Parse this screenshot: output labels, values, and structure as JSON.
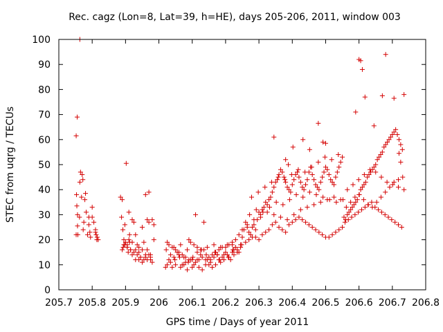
{
  "chart_data": {
    "type": "scatter",
    "title": "Rec. cagz (Lon=8, Lat=39, h=HE), days 205-206, 2011, window 003",
    "xlabel": "GPS time / Days of year 2011",
    "ylabel": "STEC from uqrg / TECUs",
    "xlim": [
      205.7,
      206.8
    ],
    "ylim": [
      0,
      100
    ],
    "xticks": [
      205.7,
      205.8,
      205.9,
      206,
      206.1,
      206.2,
      206.3,
      206.4,
      206.5,
      206.6,
      206.7,
      206.8
    ],
    "xtick_labels": [
      "205.7",
      "205.8",
      "205.9",
      "206",
      "206.1",
      "206.2",
      "206.3",
      "206.4",
      "206.5",
      "206.6",
      "206.7",
      "206.8"
    ],
    "yticks": [
      0,
      10,
      20,
      30,
      40,
      50,
      60,
      70,
      80,
      90,
      100
    ],
    "ytick_labels": [
      "0",
      "10",
      "20",
      "30",
      "40",
      "50",
      "60",
      "70",
      "80",
      "90",
      "100"
    ],
    "marker": "+",
    "color": "#d40000",
    "series": [
      {
        "name": "STEC",
        "x": [
          205.755,
          205.752,
          205.753,
          205.754,
          205.756,
          205.757,
          205.765,
          205.763,
          205.77,
          205.772,
          205.775,
          205.778,
          205.78,
          205.782,
          205.79,
          205.793,
          205.795,
          205.8,
          205.805,
          205.81,
          205.812,
          205.815,
          205.818,
          205.752,
          205.756,
          205.762,
          205.768,
          205.773,
          205.786,
          205.79,
          205.8,
          205.81,
          205.814,
          205.885,
          205.888,
          205.89,
          205.892,
          205.895,
          205.898,
          205.902,
          205.905,
          205.908,
          205.91,
          205.912,
          205.915,
          205.92,
          205.925,
          205.93,
          205.935,
          205.94,
          205.945,
          205.95,
          205.955,
          205.96,
          205.965,
          205.97,
          205.975,
          205.98,
          205.985,
          205.893,
          205.9,
          205.91,
          205.92,
          205.93,
          205.94,
          205.95,
          205.96,
          205.97,
          205.975,
          205.895,
          205.905,
          205.915,
          205.925,
          205.935,
          205.945,
          205.955,
          205.965,
          205.975,
          205.98,
          205.89,
          205.898,
          205.905,
          205.912,
          205.92,
          205.93,
          205.94,
          205.95,
          205.96,
          205.965,
          205.97,
          205.985,
          206.02,
          206.025,
          206.03,
          206.035,
          206.04,
          206.045,
          206.05,
          206.055,
          206.06,
          206.065,
          206.07,
          206.075,
          206.08,
          206.085,
          206.09,
          206.095,
          206.1,
          206.105,
          206.11,
          206.115,
          206.12,
          206.125,
          206.13,
          206.135,
          206.14,
          206.145,
          206.15,
          206.155,
          206.16,
          206.165,
          206.17,
          206.175,
          206.18,
          206.185,
          206.19,
          206.195,
          206.2,
          206.205,
          206.21,
          206.215,
          206.22,
          206.225,
          206.23,
          206.235,
          206.24,
          206.245,
          206.03,
          206.04,
          206.05,
          206.06,
          206.07,
          206.08,
          206.09,
          206.1,
          206.11,
          206.12,
          206.13,
          206.14,
          206.15,
          206.16,
          206.17,
          206.18,
          206.19,
          206.2,
          206.21,
          206.22,
          206.23,
          206.24,
          206.25,
          206.022,
          206.035,
          206.048,
          206.062,
          206.075,
          206.088,
          206.102,
          206.115,
          206.128,
          206.142,
          206.155,
          206.168,
          206.182,
          206.195,
          206.208,
          206.222,
          206.235,
          206.248,
          206.025,
          206.045,
          206.065,
          206.085,
          206.105,
          206.125,
          206.145,
          206.165,
          206.185,
          206.205,
          206.225,
          206.245,
          206.095,
          206.115,
          206.135,
          206.175,
          206.22,
          206.25,
          206.255,
          206.26,
          206.265,
          206.27,
          206.275,
          206.28,
          206.285,
          206.29,
          206.295,
          206.3,
          206.305,
          206.31,
          206.315,
          206.32,
          206.325,
          206.33,
          206.335,
          206.34,
          206.345,
          206.35,
          206.355,
          206.36,
          206.365,
          206.37,
          206.375,
          206.38,
          206.385,
          206.39,
          206.395,
          206.4,
          206.405,
          206.41,
          206.415,
          206.42,
          206.425,
          206.43,
          206.435,
          206.44,
          206.445,
          206.45,
          206.455,
          206.46,
          206.465,
          206.47,
          206.475,
          206.48,
          206.485,
          206.49,
          206.495,
          206.5,
          206.505,
          206.51,
          206.515,
          206.52,
          206.525,
          206.53,
          206.535,
          206.54,
          206.545,
          206.55,
          206.26,
          206.27,
          206.28,
          206.29,
          206.3,
          206.31,
          206.32,
          206.33,
          206.34,
          206.35,
          206.36,
          206.37,
          206.38,
          206.39,
          206.4,
          206.41,
          206.42,
          206.43,
          206.44,
          206.45,
          206.46,
          206.47,
          206.48,
          206.49,
          206.5,
          206.51,
          206.52,
          206.53,
          206.54,
          206.55,
          206.265,
          206.285,
          206.305,
          206.325,
          206.345,
          206.365,
          206.385,
          206.405,
          206.425,
          206.445,
          206.465,
          206.485,
          206.505,
          206.525,
          206.545,
          206.272,
          206.292,
          206.312,
          206.332,
          206.352,
          206.372,
          206.392,
          206.412,
          206.432,
          206.452,
          206.472,
          206.492,
          206.512,
          206.532,
          206.552,
          206.278,
          206.298,
          206.318,
          206.338,
          206.358,
          206.378,
          206.398,
          206.418,
          206.438,
          206.458,
          206.478,
          206.498,
          206.518,
          206.538,
          206.345,
          206.38,
          206.388,
          206.402,
          206.478,
          206.492,
          206.5,
          206.432,
          206.452,
          206.555,
          206.56,
          206.565,
          206.57,
          206.575,
          206.58,
          206.585,
          206.59,
          206.595,
          206.6,
          206.605,
          206.61,
          206.615,
          206.62,
          206.625,
          206.63,
          206.635,
          206.64,
          206.645,
          206.65,
          206.655,
          206.66,
          206.665,
          206.67,
          206.675,
          206.68,
          206.685,
          206.69,
          206.695,
          206.7,
          206.705,
          206.71,
          206.715,
          206.72,
          206.725,
          206.73,
          206.558,
          206.568,
          206.578,
          206.588,
          206.598,
          206.608,
          206.618,
          206.628,
          206.638,
          206.648,
          206.658,
          206.668,
          206.678,
          206.688,
          206.698,
          206.708,
          206.718,
          206.728,
          206.562,
          206.575,
          206.588,
          206.601,
          206.614,
          206.627,
          206.64,
          206.653,
          206.666,
          206.679,
          206.692,
          206.705,
          206.718,
          206.731,
          206.565,
          206.582,
          206.599,
          206.616,
          206.633,
          206.65,
          206.667,
          206.684,
          206.701,
          206.718,
          206.735,
          206.6,
          206.605,
          206.61,
          206.68,
          206.618,
          206.67,
          206.705,
          206.735,
          206.59,
          206.645,
          206.72,
          206.725
        ],
        "y": [
          69,
          61.5,
          38,
          33.5,
          25.5,
          22,
          47,
          43,
          46,
          44,
          27,
          36,
          38.5,
          31,
          29,
          23,
          21,
          33,
          27,
          24,
          22,
          21,
          20,
          22,
          30,
          29,
          37,
          24,
          22,
          26,
          29,
          23,
          20,
          37,
          29,
          36,
          24,
          20,
          18,
          50.5,
          17,
          15,
          31,
          19,
          16,
          28,
          27,
          22,
          18,
          15,
          13,
          25,
          19,
          38,
          16,
          39,
          14,
          28,
          26,
          17,
          19,
          20,
          19,
          16,
          17,
          16,
          14,
          14,
          13,
          18,
          17,
          16,
          15,
          14,
          13,
          12,
          12,
          12,
          11,
          16,
          26,
          18,
          22,
          14,
          12,
          12,
          11,
          13,
          28,
          27,
          20,
          9,
          10,
          12,
          11,
          9,
          13,
          10,
          15,
          14,
          9,
          10,
          13,
          11,
          8,
          20,
          12,
          9,
          10,
          30,
          12,
          9,
          14,
          8,
          27,
          10,
          12,
          10,
          11,
          9,
          13,
          10,
          14,
          12,
          11,
          13,
          12,
          15,
          14,
          13,
          12,
          15,
          14,
          17,
          16,
          15,
          18,
          18,
          17,
          16,
          15,
          14,
          13,
          12,
          12,
          11,
          12,
          13,
          12,
          13,
          14,
          15,
          16,
          17,
          17,
          18,
          19,
          20,
          22,
          24,
          16,
          14,
          12,
          13,
          10,
          11,
          13,
          15,
          16,
          14,
          12,
          15,
          12,
          14,
          13,
          16,
          15,
          18,
          19,
          17,
          18,
          16,
          18,
          16,
          17,
          18,
          17,
          18,
          16,
          17,
          19,
          17,
          16,
          14,
          18,
          21,
          24,
          27,
          25,
          23,
          22,
          25,
          26,
          24,
          28,
          31,
          30,
          32,
          33,
          35,
          34,
          36,
          37,
          39,
          41,
          43,
          44,
          46,
          48,
          47,
          45,
          43,
          41,
          40,
          39,
          42,
          44,
          46,
          47,
          45,
          43,
          41,
          40,
          42,
          44,
          47,
          49,
          46,
          44,
          42,
          41,
          40,
          43,
          45,
          47,
          49,
          48,
          46,
          44,
          43,
          42,
          45,
          47,
          49,
          51,
          53,
          19,
          20,
          21,
          21,
          20,
          22,
          23,
          24,
          26,
          27,
          25,
          24,
          23,
          26,
          27,
          28,
          29,
          28,
          27,
          26,
          25,
          24,
          23,
          22,
          21,
          21,
          22,
          23,
          24,
          25,
          26,
          28,
          29,
          31,
          30,
          29,
          28,
          30,
          32,
          33,
          34,
          35,
          36,
          37,
          36,
          30,
          32,
          31,
          33,
          35,
          34,
          36,
          38,
          37,
          39,
          38,
          37,
          36,
          35,
          36,
          37,
          39,
          41,
          43,
          45,
          44,
          46,
          48,
          47,
          49,
          51,
          53,
          52,
          54,
          61,
          52,
          50,
          57,
          66.5,
          59,
          58.5,
          60,
          56,
          29,
          28,
          30,
          31,
          32,
          33,
          34,
          35,
          36,
          38,
          40,
          41,
          42,
          43,
          45,
          46,
          47,
          48,
          49,
          50,
          52,
          53,
          54,
          55,
          57,
          58,
          59,
          60,
          61,
          62,
          63,
          64,
          62,
          60,
          58,
          56,
          27,
          28,
          29,
          30,
          31,
          32,
          33,
          34,
          35,
          33,
          32,
          31,
          30,
          29,
          28,
          27,
          26,
          25,
          33,
          35,
          37,
          38,
          36,
          34,
          33,
          35,
          37,
          39,
          41,
          43,
          44,
          45,
          40,
          42,
          44,
          46,
          48,
          47,
          45,
          43,
          42,
          41,
          40,
          92,
          91.5,
          88,
          94,
          77,
          77.5,
          76.5,
          78,
          71,
          65.5,
          54.5,
          51
        ],
        "y_noted": [
          100
        ]
      }
    ]
  }
}
